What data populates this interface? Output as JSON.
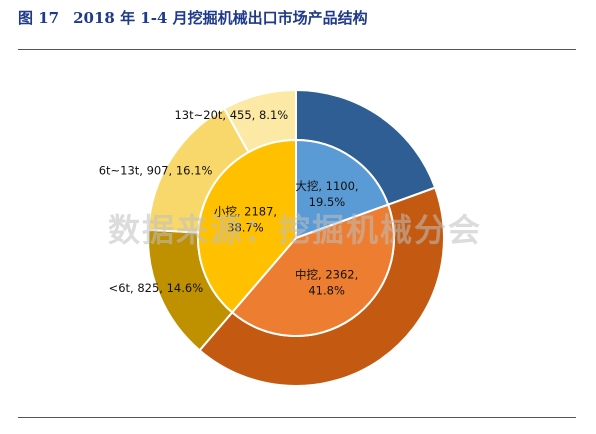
{
  "header": {
    "figure_no": "图 17",
    "title": "2018 年 1-4 月挖掘机械出口市场产品结构"
  },
  "watermark": "数据来源：挖掘机械分会",
  "colors": {
    "title": "#1f3a8a",
    "outer": [
      "#2e5e94",
      "#c45a11",
      "#bf9000",
      "#f9d86b",
      "#fde9a6"
    ],
    "inner": [
      "#5b9bd5",
      "#ed7d31",
      "#ffc000"
    ]
  },
  "chart_data": {
    "type": "pie",
    "title": "",
    "outer_ring": {
      "slices": [
        {
          "label": "大挖, 1100, 19.5%",
          "value": 1100,
          "percent": 19.5,
          "label_visible": false
        },
        {
          "label": "中挖, 2362, 41.8%",
          "value": 2362,
          "percent": 41.8,
          "label_visible": false
        },
        {
          "label": "<6t, 825, 14.6%",
          "value": 825,
          "percent": 14.6,
          "label_visible": true
        },
        {
          "label": "6t~13t, 907, 16.1%",
          "value": 907,
          "percent": 16.1,
          "label_visible": true
        },
        {
          "label": "13t~20t, 455, 8.1%",
          "value": 455,
          "percent": 8.1,
          "label_visible": true
        }
      ]
    },
    "inner_pie": {
      "slices": [
        {
          "name": "大挖",
          "value": 1100,
          "percent": 19.5,
          "label_lines": [
            "大挖, 1100,",
            "19.5%"
          ]
        },
        {
          "name": "中挖",
          "value": 2362,
          "percent": 41.8,
          "label_lines": [
            "中挖, 2362,",
            "41.8%"
          ]
        },
        {
          "name": "小挖",
          "value": 2187,
          "percent": 38.7,
          "label_lines": [
            "小挖, 2187,",
            "38.7%"
          ]
        }
      ]
    }
  }
}
